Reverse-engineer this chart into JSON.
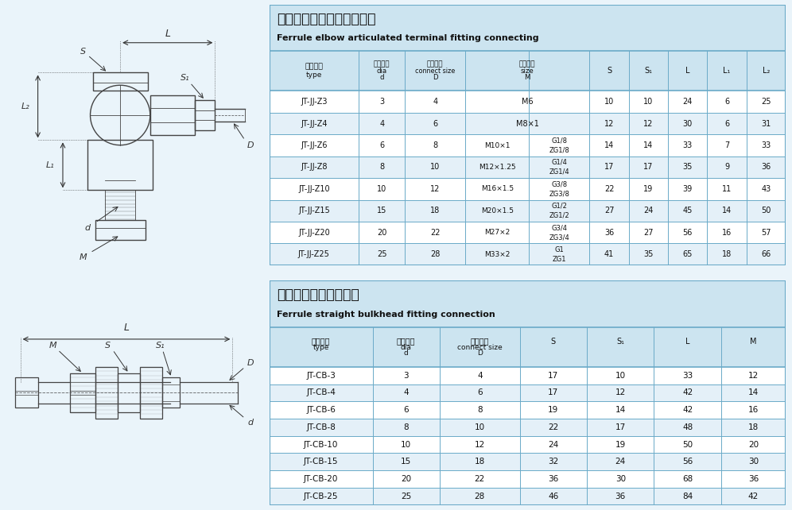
{
  "title1_cn": "卡套式直角铰接终端管接头",
  "title1_en": "Ferrule elbow articulated terminal fitting connecting",
  "title2_cn": "卡套式直通穿板管接头",
  "title2_en": "Ferrule straight bulkhead fitting connection",
  "table1_data": [
    [
      "JT-JJ-Z3",
      "3",
      "4",
      "M6",
      "",
      "10",
      "10",
      "24",
      "6",
      "25"
    ],
    [
      "JT-JJ-Z4",
      "4",
      "6",
      "M8×1",
      "",
      "12",
      "12",
      "30",
      "6",
      "31"
    ],
    [
      "JT-JJ-Z6",
      "6",
      "8",
      "M10×1",
      "G1/8",
      "14",
      "14",
      "33",
      "7",
      "33"
    ],
    [
      "JT-JJ-Z8",
      "8",
      "10",
      "M12×1.25",
      "G1/4",
      "17",
      "17",
      "35",
      "9",
      "36"
    ],
    [
      "JT-JJ-Z10",
      "10",
      "12",
      "M16×1.5",
      "G3/8",
      "22",
      "19",
      "39",
      "11",
      "43"
    ],
    [
      "JT-JJ-Z15",
      "15",
      "18",
      "M20×1.5",
      "G1/2",
      "27",
      "24",
      "45",
      "14",
      "50"
    ],
    [
      "JT-JJ-Z20",
      "20",
      "22",
      "M27×2",
      "G3/4",
      "36",
      "27",
      "56",
      "16",
      "57"
    ],
    [
      "JT-JJ-Z25",
      "25",
      "28",
      "M33×2",
      "G1",
      "41",
      "35",
      "65",
      "18",
      "66"
    ]
  ],
  "table1_zg": [
    "",
    "",
    "ZG1/8",
    "ZG1/4",
    "ZG3/8",
    "ZG1/2",
    "ZG3/4",
    "ZG1"
  ],
  "table2_data": [
    [
      "JT-CB-3",
      "3",
      "4",
      "17",
      "10",
      "33",
      "12"
    ],
    [
      "JT-CB-4",
      "4",
      "6",
      "17",
      "12",
      "42",
      "14"
    ],
    [
      "JT-CB-6",
      "6",
      "8",
      "19",
      "14",
      "42",
      "16"
    ],
    [
      "JT-CB-8",
      "8",
      "10",
      "22",
      "17",
      "48",
      "18"
    ],
    [
      "JT-CB-10",
      "10",
      "12",
      "24",
      "19",
      "50",
      "20"
    ],
    [
      "JT-CB-15",
      "15",
      "18",
      "32",
      "24",
      "56",
      "30"
    ],
    [
      "JT-CB-20",
      "20",
      "22",
      "36",
      "30",
      "68",
      "36"
    ],
    [
      "JT-CB-25",
      "25",
      "28",
      "46",
      "36",
      "84",
      "42"
    ]
  ],
  "header_bg": "#cce4f0",
  "title_bg": "#cce4f0",
  "row_bg_odd": "#ffffff",
  "row_bg_even": "#e4f0f8",
  "border_color": "#6aaac8",
  "text_color": "#111111",
  "bg_color": "#eaf4fa"
}
